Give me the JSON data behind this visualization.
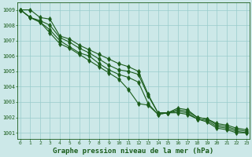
{
  "background_color": "#cce8e8",
  "grid_color": "#99cccc",
  "line_color": "#1a5c1a",
  "xlabel": "Graphe pression niveau de la mer (hPa)",
  "xlabel_fontsize": 6.5,
  "ylabel_ticks": [
    1001,
    1002,
    1003,
    1004,
    1005,
    1006,
    1007,
    1008,
    1009
  ],
  "x_ticks": [
    0,
    1,
    2,
    3,
    4,
    5,
    6,
    7,
    8,
    9,
    10,
    11,
    12,
    13,
    14,
    15,
    16,
    17,
    18,
    19,
    20,
    21,
    22,
    23
  ],
  "series": [
    [
      1009.0,
      1009.0,
      1008.5,
      1008.4,
      1007.3,
      1007.1,
      1006.7,
      1006.4,
      1006.1,
      1005.8,
      1005.5,
      1005.3,
      1005.0,
      1003.5,
      1002.3,
      1002.3,
      1002.6,
      1002.5,
      1002.0,
      1001.9,
      1001.6,
      1001.5,
      1001.3,
      1001.2
    ],
    [
      1009.0,
      1008.5,
      1008.3,
      1008.0,
      1007.2,
      1006.9,
      1006.5,
      1006.2,
      1005.8,
      1005.4,
      1005.1,
      1005.0,
      1004.8,
      1003.4,
      1002.3,
      1002.3,
      1002.5,
      1002.4,
      1002.0,
      1001.9,
      1001.5,
      1001.4,
      1001.2,
      1001.1
    ],
    [
      1009.0,
      1008.5,
      1008.2,
      1007.7,
      1007.0,
      1006.6,
      1006.2,
      1006.0,
      1005.5,
      1005.1,
      1004.8,
      1004.6,
      1004.3,
      1002.9,
      1002.2,
      1002.3,
      1002.4,
      1002.3,
      1001.9,
      1001.8,
      1001.4,
      1001.3,
      1001.1,
      1001.0
    ],
    [
      1009.0,
      1008.5,
      1008.2,
      1007.5,
      1006.8,
      1006.5,
      1006.1,
      1005.7,
      1005.3,
      1004.9,
      1004.5,
      1003.8,
      1002.9,
      1002.8,
      1002.2,
      1002.3,
      1002.3,
      1002.2,
      1001.9,
      1001.7,
      1001.3,
      1001.2,
      1001.0,
      1001.0
    ]
  ],
  "marker": "d",
  "markersize": 3,
  "linewidth": 0.8,
  "ylim": [
    1000.6,
    1009.5
  ],
  "xlim": [
    -0.3,
    23.3
  ]
}
